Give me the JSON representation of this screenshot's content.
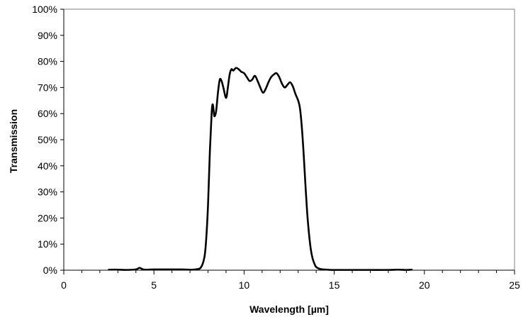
{
  "chart_data": {
    "type": "line",
    "title": "",
    "xlabel": "Wavelength [µm]",
    "ylabel": "Transmission",
    "xlim": [
      0,
      25
    ],
    "ylim": [
      0,
      100
    ],
    "x_ticks": [
      0,
      5,
      10,
      15,
      20,
      25
    ],
    "x_tick_labels": [
      "0",
      "5",
      "10",
      "15",
      "20",
      "25"
    ],
    "y_ticks": [
      0,
      10,
      20,
      30,
      40,
      50,
      60,
      70,
      80,
      90,
      100
    ],
    "y_tick_labels": [
      "0%",
      "10%",
      "20%",
      "30%",
      "40%",
      "50%",
      "60%",
      "70%",
      "80%",
      "90%",
      "100%"
    ],
    "grid": false,
    "legend": "none",
    "line_color": "#000000",
    "series": [
      {
        "x": [
          2.5,
          3.0,
          3.5,
          4.0,
          4.2,
          4.4,
          4.6,
          5.0,
          5.5,
          6.0,
          6.5,
          7.0,
          7.3,
          7.6,
          7.8,
          7.9,
          8.0,
          8.1,
          8.2,
          8.25,
          8.3,
          8.35,
          8.45,
          8.55,
          8.65,
          8.75,
          8.85,
          9.0,
          9.1,
          9.2,
          9.3,
          9.4,
          9.55,
          9.7,
          9.85,
          10.0,
          10.15,
          10.3,
          10.45,
          10.6,
          10.75,
          10.9,
          11.05,
          11.2,
          11.35,
          11.5,
          11.65,
          11.8,
          11.95,
          12.1,
          12.25,
          12.4,
          12.55,
          12.7,
          12.85,
          13.0,
          13.1,
          13.2,
          13.3,
          13.4,
          13.5,
          13.6,
          13.7,
          13.8,
          13.9,
          14.0,
          14.2,
          14.4,
          14.6,
          14.8,
          15.0,
          15.5,
          16.0,
          17.0,
          18.0,
          18.5,
          19.0,
          19.3
        ],
        "y": [
          0.2,
          0.2,
          0.1,
          0.3,
          0.9,
          0.3,
          0.2,
          0.3,
          0.3,
          0.3,
          0.3,
          0.2,
          0.3,
          1.0,
          5.0,
          12.0,
          25.0,
          45.0,
          60.0,
          63.5,
          62.0,
          59.0,
          61.0,
          68.0,
          73.0,
          72.5,
          70.0,
          66.0,
          70.0,
          75.0,
          77.0,
          76.5,
          77.5,
          77.0,
          76.0,
          75.5,
          74.0,
          72.5,
          73.0,
          74.5,
          72.5,
          70.0,
          68.0,
          69.5,
          72.0,
          74.0,
          75.0,
          75.5,
          74.0,
          71.5,
          70.0,
          71.0,
          72.0,
          70.5,
          67.5,
          65.0,
          62.0,
          55.0,
          45.0,
          33.0,
          22.0,
          14.0,
          8.0,
          4.5,
          2.5,
          1.2,
          0.5,
          0.3,
          0.2,
          0.1,
          0.1,
          0.1,
          0.1,
          0.1,
          0.1,
          0.2,
          0.1,
          0.2
        ]
      }
    ]
  }
}
